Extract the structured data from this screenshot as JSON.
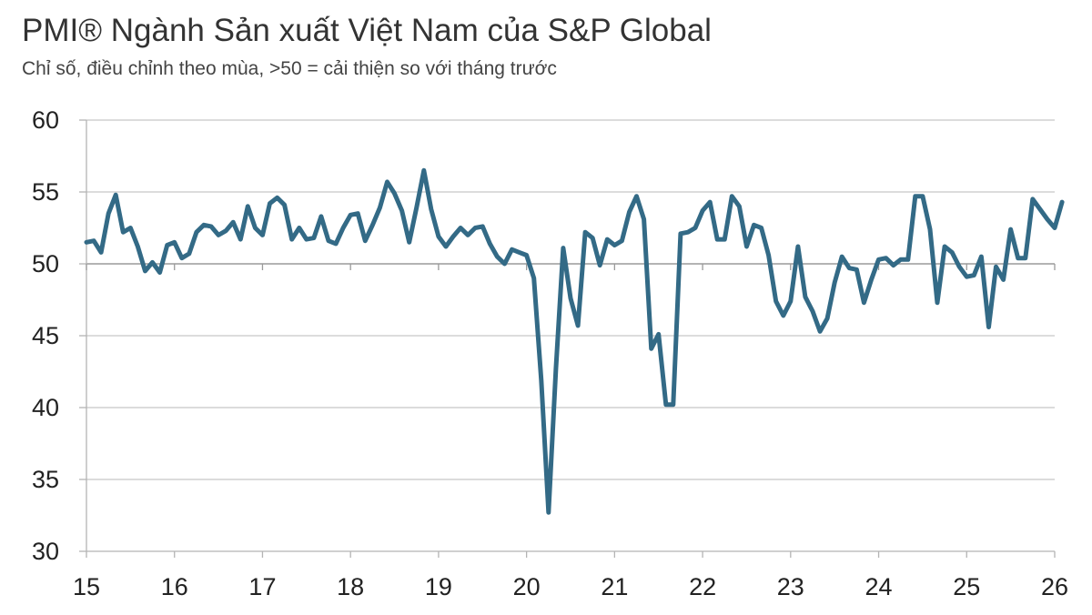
{
  "chart_data": {
    "type": "line",
    "title": "PMI® Ngành Sản xuất Việt Nam của S&P Global",
    "subtitle": "Chỉ số, điều chỉnh theo mùa, >50 = cải thiện so với tháng trước",
    "xlabel": "",
    "ylabel": "",
    "ylim": [
      30,
      60
    ],
    "yticks": [
      "60",
      "55",
      "50",
      "45",
      "40",
      "35",
      "30"
    ],
    "xticks": [
      "15",
      "16",
      "17",
      "18",
      "19",
      "20",
      "21",
      "22",
      "23",
      "24",
      "25",
      "26"
    ],
    "xrange": [
      "2015-01",
      "2026-01"
    ],
    "grid": true,
    "legend": "none",
    "colors": {
      "line": "#336a86",
      "grid": "#c8c8c8",
      "axis": "#b4b4b4",
      "text": "#222222"
    },
    "series": [
      {
        "x_start": "2015-01",
        "frequency": "monthly",
        "values": [
          51.5,
          51.6,
          50.8,
          53.5,
          54.8,
          52.2,
          52.5,
          51.2,
          49.5,
          50.1,
          49.4,
          51.3,
          51.5,
          50.4,
          50.7,
          52.2,
          52.7,
          52.6,
          52.0,
          52.3,
          52.9,
          51.7,
          54.0,
          52.5,
          52.0,
          54.2,
          54.6,
          54.1,
          51.7,
          52.5,
          51.7,
          51.8,
          53.3,
          51.6,
          51.4,
          52.5,
          53.4,
          53.5,
          51.6,
          52.7,
          53.9,
          55.7,
          54.9,
          53.7,
          51.5,
          53.9,
          56.5,
          53.8,
          51.9,
          51.2,
          51.9,
          52.5,
          52.0,
          52.5,
          52.6,
          51.4,
          50.5,
          50.0,
          51.0,
          50.8,
          50.6,
          49.0,
          41.9,
          32.7,
          42.7,
          51.1,
          47.6,
          45.7,
          52.2,
          51.8,
          49.9,
          51.7,
          51.3,
          51.6,
          53.6,
          54.7,
          53.1,
          44.1,
          45.1,
          40.2,
          40.2,
          52.1,
          52.2,
          52.5,
          53.7,
          54.3,
          51.7,
          51.7,
          54.7,
          54.0,
          51.2,
          52.7,
          52.5,
          50.6,
          47.4,
          46.4,
          47.4,
          51.2,
          47.7,
          46.7,
          45.3,
          46.2,
          48.7,
          50.5,
          49.7,
          49.6,
          47.3,
          48.9,
          50.3,
          50.4,
          49.9,
          50.3,
          50.3,
          54.7,
          54.7,
          52.4,
          47.3,
          51.2,
          50.8,
          49.8,
          49.1,
          49.2,
          50.5,
          45.6,
          49.8,
          48.9,
          52.4,
          50.4,
          50.4,
          54.5,
          53.8,
          53.1,
          52.5,
          54.3
        ]
      }
    ]
  }
}
